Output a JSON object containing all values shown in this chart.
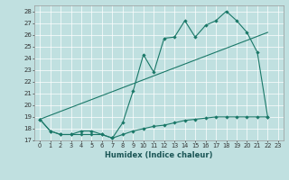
{
  "xlabel": "Humidex (Indice chaleur)",
  "bg_color": "#c0e0e0",
  "line_color": "#1a7868",
  "xlim": [
    -0.5,
    23.5
  ],
  "ylim": [
    17,
    28.5
  ],
  "yticks": [
    17,
    18,
    19,
    20,
    21,
    22,
    23,
    24,
    25,
    26,
    27,
    28
  ],
  "xticks": [
    0,
    1,
    2,
    3,
    4,
    5,
    6,
    7,
    8,
    9,
    10,
    11,
    12,
    13,
    14,
    15,
    16,
    17,
    18,
    19,
    20,
    21,
    22,
    23
  ],
  "line1_x": [
    0,
    1,
    2,
    3,
    4,
    5,
    6,
    7,
    8,
    9,
    10,
    11,
    12,
    13,
    14,
    15,
    16,
    17,
    18,
    19,
    20,
    21,
    22
  ],
  "line1_y": [
    18.8,
    17.8,
    17.5,
    17.5,
    17.8,
    17.8,
    17.5,
    17.2,
    18.5,
    21.2,
    24.3,
    22.8,
    25.7,
    25.8,
    27.2,
    25.8,
    26.8,
    27.2,
    28.0,
    27.2,
    26.2,
    24.5,
    19.0
  ],
  "line2_x": [
    0,
    22
  ],
  "line2_y": [
    18.8,
    26.2
  ],
  "line3_x": [
    0,
    1,
    2,
    3,
    4,
    5,
    6,
    7,
    8,
    9,
    10,
    11,
    12,
    13,
    14,
    15,
    16,
    17,
    18,
    19,
    20,
    21,
    22
  ],
  "line3_y": [
    18.8,
    17.8,
    17.5,
    17.5,
    17.5,
    17.5,
    17.5,
    17.2,
    17.5,
    17.8,
    18.0,
    18.2,
    18.3,
    18.5,
    18.7,
    18.8,
    18.9,
    19.0,
    19.0,
    19.0,
    19.0,
    19.0,
    19.0
  ]
}
